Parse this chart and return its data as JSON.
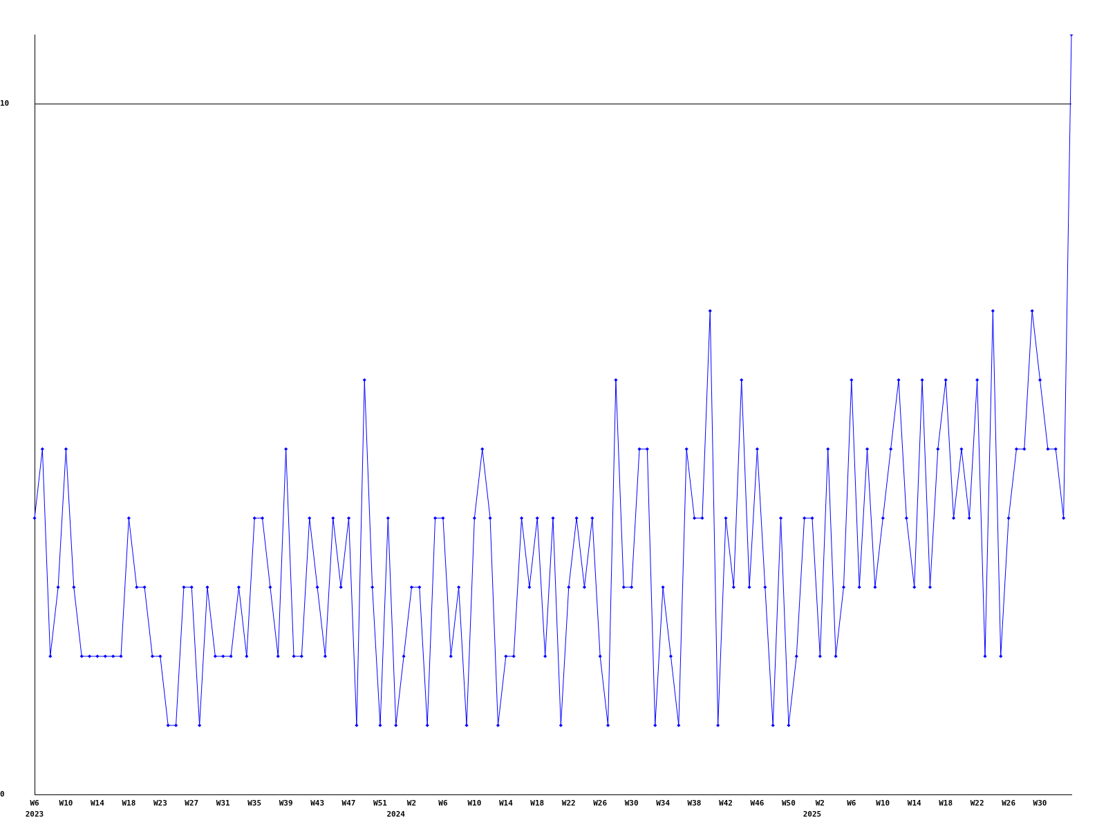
{
  "chart_data": {
    "type": "line",
    "categories": [
      "W6\n2023",
      null,
      null,
      null,
      "W10",
      null,
      null,
      null,
      "W14",
      null,
      null,
      null,
      "W18",
      null,
      null,
      null,
      "W23",
      null,
      null,
      null,
      "W27",
      null,
      null,
      null,
      "W31",
      null,
      null,
      null,
      "W35",
      null,
      null,
      null,
      "W39",
      null,
      null,
      null,
      "W43",
      null,
      null,
      null,
      "W47",
      null,
      null,
      null,
      "W51",
      null,
      "\n2024",
      null,
      "W2",
      null,
      null,
      null,
      "W6",
      null,
      null,
      null,
      "W10",
      null,
      null,
      null,
      "W14",
      null,
      null,
      null,
      "W18",
      null,
      null,
      null,
      "W22",
      null,
      null,
      null,
      "W26",
      null,
      null,
      null,
      "W30",
      null,
      null,
      null,
      "W34",
      null,
      null,
      null,
      "W38",
      null,
      null,
      null,
      "W42",
      null,
      null,
      null,
      "W46",
      null,
      null,
      null,
      "W50",
      null,
      null,
      "\n2025",
      "W2",
      null,
      null,
      null,
      "W6",
      null,
      null,
      null,
      "W10",
      null,
      null,
      null,
      "W14",
      null,
      null,
      null,
      "W18",
      null,
      null,
      null,
      "W22",
      null,
      null,
      null,
      "W26",
      null,
      null,
      null,
      "W30",
      null,
      null,
      null,
      null
    ],
    "values": [
      4,
      5,
      2,
      3,
      5,
      3,
      2,
      2,
      2,
      2,
      2,
      2,
      4,
      3,
      3,
      2,
      2,
      1,
      1,
      3,
      3,
      1,
      3,
      2,
      2,
      2,
      3,
      2,
      4,
      4,
      3,
      2,
      5,
      2,
      2,
      4,
      3,
      2,
      4,
      3,
      4,
      1,
      6,
      3,
      1,
      4,
      1,
      2,
      3,
      3,
      1,
      4,
      4,
      2,
      3,
      1,
      4,
      5,
      4,
      1,
      2,
      2,
      4,
      3,
      4,
      2,
      4,
      1,
      3,
      4,
      3,
      4,
      2,
      1,
      6,
      3,
      3,
      5,
      5,
      1,
      3,
      2,
      1,
      5,
      4,
      4,
      7,
      1,
      4,
      3,
      6,
      3,
      5,
      3,
      1,
      4,
      1,
      2,
      4,
      4,
      2,
      5,
      2,
      3,
      6,
      3,
      5,
      3,
      4,
      5,
      6,
      4,
      3,
      6,
      3,
      5,
      6,
      4,
      5,
      4,
      6,
      2,
      7,
      2,
      4,
      5,
      5,
      7,
      6,
      5,
      5,
      4,
      11
    ],
    "color": "#0000ff",
    "ylim": [
      0,
      11
    ],
    "yticks": [
      0,
      10
    ],
    "grid": "y",
    "marker": "diamond"
  }
}
